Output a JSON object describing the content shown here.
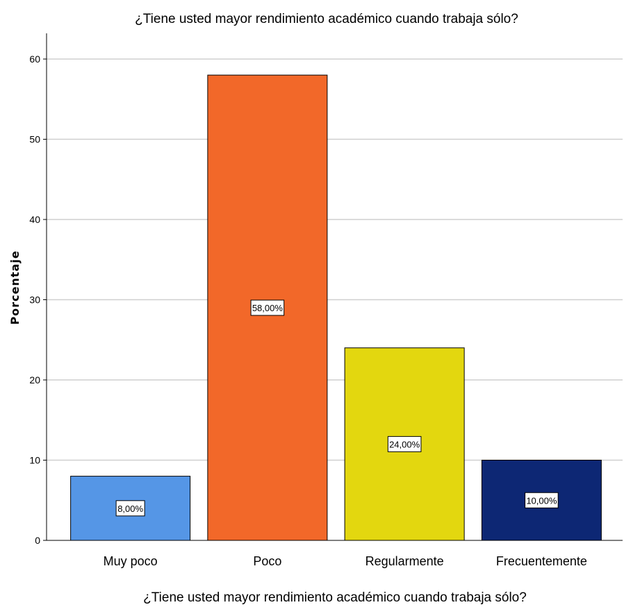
{
  "chart_data": {
    "type": "bar",
    "title": "¿Tiene usted mayor rendimiento académico cuando trabaja sólo?",
    "xlabel": "¿Tiene usted mayor rendimiento académico cuando trabaja sólo?",
    "ylabel": "Porcentaje",
    "categories": [
      "Muy poco",
      "Poco",
      "Regularmente",
      "Frecuentemente"
    ],
    "values": [
      8,
      58,
      24,
      10
    ],
    "data_labels": [
      "8,00%",
      "58,00%",
      "24,00%",
      "10,00%"
    ],
    "colors": [
      "#5596e6",
      "#f26829",
      "#e3d70f",
      "#0d2774"
    ],
    "ylim": [
      0,
      60
    ],
    "yticks": [
      0,
      10,
      20,
      30,
      40,
      50,
      60
    ],
    "grid": true,
    "legend": "none"
  }
}
